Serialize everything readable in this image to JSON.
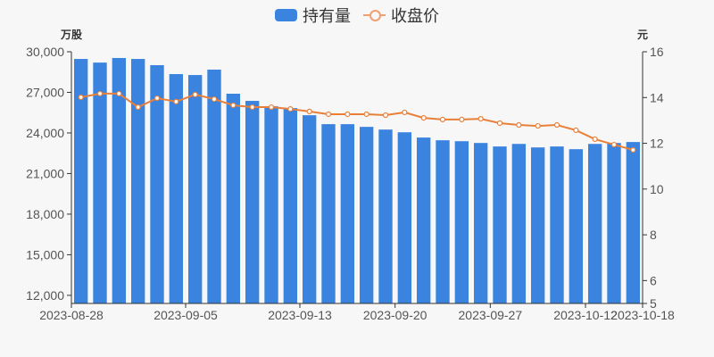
{
  "legend": {
    "bar_label": "持有量",
    "line_label": "收盘价"
  },
  "axes": {
    "left_name": "万股",
    "right_name": "元"
  },
  "colors": {
    "bar": "#3a84e0",
    "line": "#e8803a",
    "axis": "#333333",
    "text": "#555555",
    "background": "#f7f7f7"
  },
  "chart_data": {
    "type": "bar+line",
    "title": "",
    "xlabel": "",
    "x_tick_labels": [
      "2023-08-28",
      "2023-09-05",
      "2023-09-13",
      "2023-09-20",
      "2023-09-27",
      "2023-10-12",
      "2023-10-18"
    ],
    "x_tick_indices": [
      0,
      6,
      12,
      17,
      22,
      27,
      30
    ],
    "bar_count": 30,
    "left_axis": {
      "name": "万股",
      "min": 11400,
      "max": 30000,
      "ticks": [
        12000,
        15000,
        18000,
        21000,
        24000,
        27000,
        30000
      ]
    },
    "right_axis": {
      "name": "元",
      "min": 5,
      "max": 16,
      "ticks": [
        5,
        6,
        8,
        10,
        12,
        14,
        16
      ]
    },
    "series": [
      {
        "name": "持有量",
        "type": "bar",
        "axis": "left",
        "values": [
          29470,
          29200,
          29540,
          29470,
          29010,
          28350,
          28280,
          28680,
          26900,
          26370,
          25970,
          25840,
          25310,
          24650,
          24650,
          24450,
          24250,
          24050,
          23660,
          23460,
          23390,
          23260,
          23000,
          23190,
          22930,
          23000,
          22800,
          23190,
          23260,
          23330
        ]
      },
      {
        "name": "收盘价",
        "type": "line",
        "axis": "right",
        "values": [
          14.01,
          14.17,
          14.17,
          13.58,
          13.97,
          13.82,
          14.13,
          13.93,
          13.66,
          13.58,
          13.58,
          13.5,
          13.39,
          13.27,
          13.27,
          13.27,
          13.23,
          13.35,
          13.11,
          13.04,
          13.04,
          13.07,
          12.88,
          12.8,
          12.76,
          12.8,
          12.57,
          12.18,
          11.94,
          11.71
        ]
      }
    ]
  }
}
